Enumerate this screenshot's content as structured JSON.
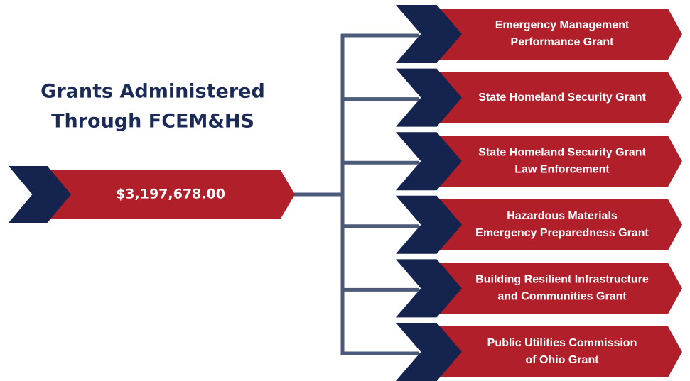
{
  "title": [
    "Grants Administered",
    "Through FCEM&HS"
  ],
  "total": "$3,197,678.00",
  "grants": [
    [
      "Emergency Management",
      "Performance Grant"
    ],
    [
      "State Homeland Security Grant"
    ],
    [
      "State Homeland Security Grant",
      "Law Enforcement"
    ],
    [
      "Hazardous Materials",
      "Emergency Preparedness Grant"
    ],
    [
      "Building Resilient Infrastructure",
      "and Communities Grant"
    ],
    [
      "Public Utilities Commission",
      "of Ohio Grant"
    ]
  ]
}
